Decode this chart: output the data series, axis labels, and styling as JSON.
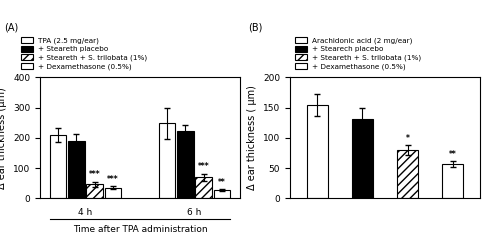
{
  "panel_A": {
    "ylabel": "Δ ear thickness (μm)",
    "xlabel": "Time after TPA administration",
    "ylim": [
      0,
      400
    ],
    "yticks": [
      0,
      100,
      200,
      300,
      400
    ],
    "groups": [
      "4 h",
      "6 h"
    ],
    "bars": {
      "values": [
        [
          210,
          190,
          47,
          35
        ],
        [
          248,
          222,
          70,
          27
        ]
      ],
      "errors": [
        [
          22,
          22,
          8,
          5
        ],
        [
          50,
          20,
          12,
          4
        ]
      ],
      "significance": [
        [
          "",
          "",
          "***",
          "***"
        ],
        [
          "",
          "",
          "***",
          "**"
        ]
      ]
    },
    "legend_labels": [
      "TPA (2.5 mg/ear)",
      "+ Steareth placebo",
      "+ Steareth + S. trilobata (1%)",
      "+ Dexamethasone (0.5%)"
    ],
    "bar_width": 0.2,
    "group_positions": [
      1.0,
      2.2
    ]
  },
  "panel_B": {
    "ylabel": "Δ ear thickness ( μm)",
    "ylim": [
      0,
      200
    ],
    "yticks": [
      0,
      50,
      100,
      150,
      200
    ],
    "bars": {
      "values": [
        155,
        132,
        80,
        57
      ],
      "errors": [
        18,
        18,
        8,
        5
      ],
      "significance": [
        "",
        "",
        "*",
        "**"
      ]
    },
    "legend_labels": [
      "Arachidonic acid (2 mg/ear)",
      "+ Stearech placebo",
      "+ Steareth + S. trilobata (1%)",
      "+ Dexamethasone (0.5%)"
    ],
    "bar_width": 0.55,
    "positions": [
      1,
      2,
      3,
      4
    ]
  },
  "colors": [
    "white",
    "black",
    "white",
    "white"
  ],
  "hatches": [
    "",
    "",
    "////",
    "===="
  ],
  "edgecolor": "black",
  "figsize": [
    5.0,
    2.42
  ],
  "dpi": 100
}
